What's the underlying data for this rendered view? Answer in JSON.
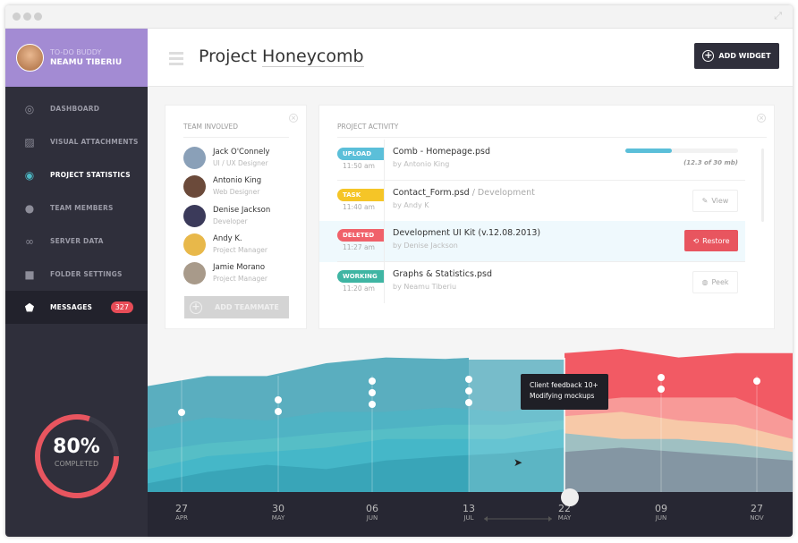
{
  "window": {
    "expand_icon": "expand-icon"
  },
  "user": {
    "app_name": "TO-DO BUDDY",
    "name": "NEAMU TIBERIU"
  },
  "sidebar": {
    "items": [
      {
        "label": "DASHBOARD",
        "icon": "dashboard-icon",
        "glyph": "◎"
      },
      {
        "label": "VISUAL ATTACHMENTS",
        "icon": "image-icon",
        "glyph": "▨"
      },
      {
        "label": "PROJECT STATISTICS",
        "icon": "eye-icon",
        "glyph": "◉",
        "active": true
      },
      {
        "label": "TEAM MEMBERS",
        "icon": "person-icon",
        "glyph": "●"
      },
      {
        "label": "SERVER DATA",
        "icon": "infinity-icon",
        "glyph": "∞"
      },
      {
        "label": "FOLDER SETTINGS",
        "icon": "folder-icon",
        "glyph": "■"
      },
      {
        "label": "MESSAGES",
        "icon": "inbox-icon",
        "glyph": "⬟",
        "badge": "327"
      }
    ],
    "progress": {
      "value": "80%",
      "label": "COMPLETED",
      "fraction": 0.8,
      "color": "#e8555f"
    }
  },
  "header": {
    "title_prefix": "Project ",
    "title_name": "Honeycomb",
    "add_widget": "ADD WIDGET"
  },
  "team": {
    "title": "TEAM INVOLVED",
    "add": "ADD TEAMMATE",
    "members": [
      {
        "name": "Jack O'Connely",
        "role": "UI / UX Designer",
        "color": "#8aa0b8"
      },
      {
        "name": "Antonio King",
        "role": "Web Designer",
        "color": "#6b4a3a"
      },
      {
        "name": "Denise Jackson",
        "role": "Developer",
        "color": "#3b3a5a"
      },
      {
        "name": "Andy K.",
        "role": "Project Manager",
        "color": "#e8b84a"
      },
      {
        "name": "Jamie Morano",
        "role": "Project Manager",
        "color": "#a89a8a"
      }
    ]
  },
  "activity": {
    "title": "PROJECT ACTIVITY",
    "rows": [
      {
        "tag": "UPLOAD",
        "color": "#5bbfd9",
        "time": "11:50 am",
        "file": "Comb - Homepage.psd",
        "sub": "",
        "by": "by Antonio King",
        "progress": 0.41,
        "progress_text": "(12.3 of 30 mb)"
      },
      {
        "tag": "TASK",
        "color": "#f5c527",
        "time": "11:40 am",
        "file": "Contact_Form.psd",
        "sub": " / Development",
        "by": "by Andy K",
        "button": "View",
        "icon": "edit-icon",
        "glyph": "✎"
      },
      {
        "tag": "DELETED",
        "color": "#f0616a",
        "time": "11:27 am",
        "file": "Development UI Kit (v.12.08.2013)",
        "sub": "",
        "by": "by Denise Jackson",
        "button": "Restore",
        "icon": "restore-icon",
        "glyph": "⟲",
        "highlight": true
      },
      {
        "tag": "WORKING",
        "color": "#3fb5a3",
        "time": "11:20 am",
        "file": "Graphs & Statistics.psd",
        "sub": "",
        "by": "by Neamu Tiberiu",
        "button": "Peek",
        "icon": "user-circle-icon",
        "glyph": "◍"
      }
    ]
  },
  "chart_data": {
    "type": "area",
    "ylim": [
      0,
      100
    ],
    "x_ticks": [
      {
        "day": "27",
        "month": "APR"
      },
      {
        "day": "30",
        "month": "MAY"
      },
      {
        "day": "06",
        "month": "JUN"
      },
      {
        "day": "13",
        "month": "JUL"
      },
      {
        "day": "22",
        "month": "MAY"
      },
      {
        "day": "09",
        "month": "JUN"
      },
      {
        "day": "27",
        "month": "NOV"
      }
    ],
    "event_dots": [
      1,
      2,
      3,
      3,
      0,
      2,
      1
    ],
    "selected_tick": 4,
    "tooltip": [
      "Client feedback 10+",
      "Modifying mockups"
    ],
    "past_series": {
      "colors": [
        "#39a5b8",
        "#45b7c8",
        "#56bec6",
        "#4fb3c4",
        "#5aaebf"
      ],
      "stacks": [
        [
          6,
          14,
          19,
          16,
          22,
          25,
          27,
          31
        ],
        [
          16,
          25,
          28,
          31,
          37,
          37,
          37,
          44
        ],
        [
          28,
          34,
          37,
          41,
          44,
          47,
          47,
          50
        ],
        [
          44,
          52,
          50,
          56,
          56,
          59,
          56,
          62
        ],
        [
          74,
          81,
          81,
          90,
          94,
          93,
          95,
          97
        ]
      ]
    },
    "future_series": {
      "colors": [
        "#8496a3",
        "#9fc0c2",
        "#f7c9a8",
        "#f89a98",
        "#f25a64"
      ],
      "stacks": [
        [
          28,
          31,
          28,
          25,
          22
        ],
        [
          41,
          37,
          37,
          34,
          28
        ],
        [
          53,
          56,
          50,
          47,
          37
        ],
        [
          62,
          66,
          66,
          66,
          50
        ],
        [
          97,
          100,
          94,
          97,
          97
        ]
      ]
    }
  }
}
